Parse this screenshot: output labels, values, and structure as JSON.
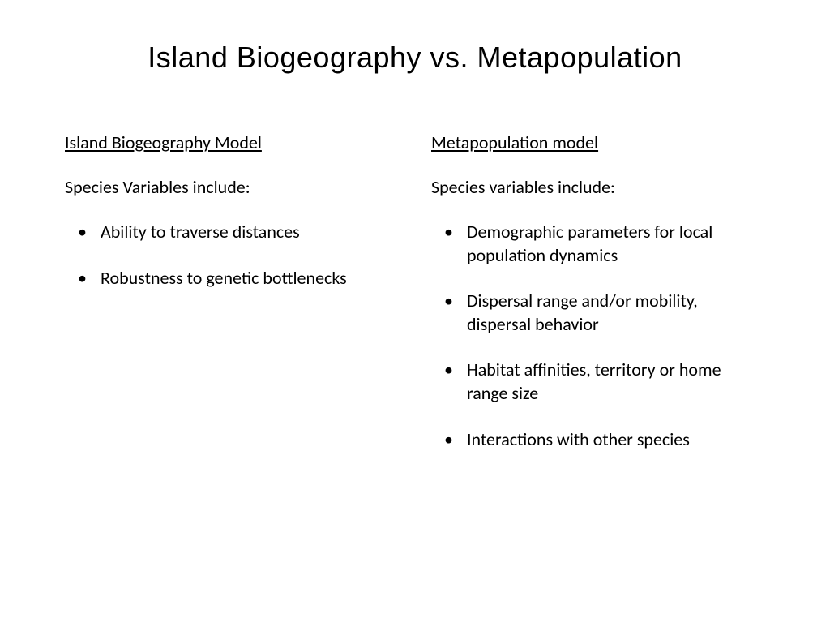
{
  "title": "Island Biogeography vs. Metapopulation",
  "left": {
    "heading": "Island Biogeography Model",
    "subheading": "Species Variables include:",
    "bullets": [
      "Ability to traverse distances",
      "Robustness to genetic bottlenecks"
    ]
  },
  "right": {
    "heading": "Metapopulation model",
    "subheading": "Species variables include:",
    "bullets": [
      "Demographic parameters for local population dynamics",
      "Dispersal range and/or mobility, dispersal behavior",
      "Habitat affinities, territory or home range size",
      "Interactions with other species"
    ]
  },
  "style": {
    "background_color": "#ffffff",
    "text_color": "#000000",
    "title_fontsize": 36,
    "heading_fontsize": 22,
    "body_fontsize": 22,
    "bullet_spacing": 28
  }
}
